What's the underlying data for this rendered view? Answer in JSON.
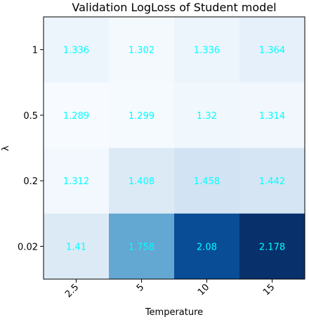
{
  "chart_data": {
    "type": "heatmap",
    "title": "Validation LogLoss of Student model",
    "xlabel": "Temperature",
    "ylabel": "λ",
    "x_categories": [
      "2.5",
      "5",
      "10",
      "15"
    ],
    "y_categories": [
      "1",
      "0.5",
      "0.2",
      "0.02"
    ],
    "values": [
      [
        1.336,
        1.302,
        1.336,
        1.364
      ],
      [
        1.289,
        1.299,
        1.32,
        1.314
      ],
      [
        1.312,
        1.408,
        1.458,
        1.442
      ],
      [
        1.41,
        1.758,
        2.08,
        2.178
      ]
    ],
    "value_labels": [
      [
        "1.336",
        "1.302",
        "1.336",
        "1.364"
      ],
      [
        "1.289",
        "1.299",
        "1.32",
        "1.314"
      ],
      [
        "1.312",
        "1.408",
        "1.458",
        "1.442"
      ],
      [
        "1.41",
        "1.758",
        "2.08",
        "2.178"
      ]
    ],
    "colormap": "Blues",
    "annotation_color": "#00ffff",
    "grid": false,
    "colorbar": false
  }
}
